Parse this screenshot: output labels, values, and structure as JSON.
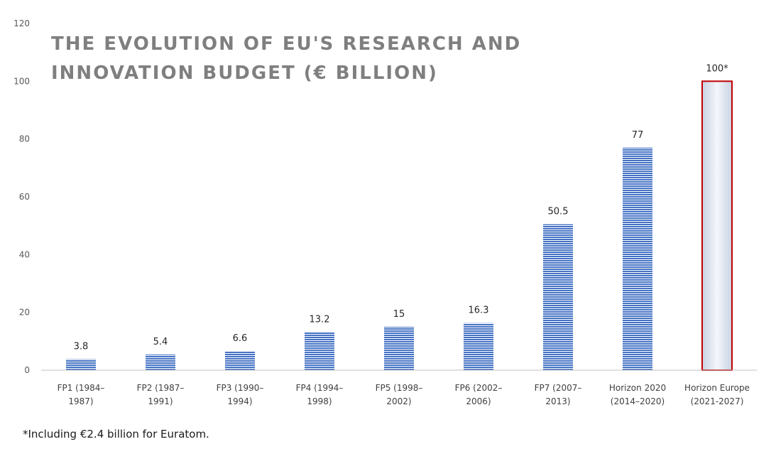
{
  "chart_data": {
    "type": "bar",
    "title_lines": [
      "THE EVOLUTION OF EU'S RESEARCH AND",
      "INNOVATION BUDGET (€ BILLION)"
    ],
    "categories": [
      [
        "FP1 (1984–",
        "1987)"
      ],
      [
        "FP2 (1987–",
        "1991)"
      ],
      [
        "FP3 (1990–",
        "1994)"
      ],
      [
        "FP4 (1994–",
        "1998)"
      ],
      [
        "FP5 (1998–",
        "2002)"
      ],
      [
        "FP6 (2002–",
        "2006)"
      ],
      [
        "FP7 (2007–",
        "2013)"
      ],
      [
        "Horizon 2020",
        "(2014–2020)"
      ],
      [
        "Horizon Europe",
        "(2021-2027)"
      ]
    ],
    "values": [
      3.8,
      5.4,
      6.6,
      13.2,
      15,
      16.3,
      50.5,
      77,
      100
    ],
    "data_labels": [
      "3.8",
      "5.4",
      "6.6",
      "13.2",
      "15",
      "16.3",
      "50.5",
      "77",
      "100*"
    ],
    "highlight_index": 8,
    "ylim": [
      0,
      120
    ],
    "yticks": [
      0,
      20,
      40,
      60,
      80,
      100,
      120
    ],
    "colors": {
      "bar": "#4472c4",
      "bar_stripe": "#ffffff",
      "highlight_fill": "#dfe6f0",
      "highlight_border": "#c00000",
      "axis": "#bfbfbf"
    }
  },
  "footnote": "*Including €2.4 billion for Euratom."
}
